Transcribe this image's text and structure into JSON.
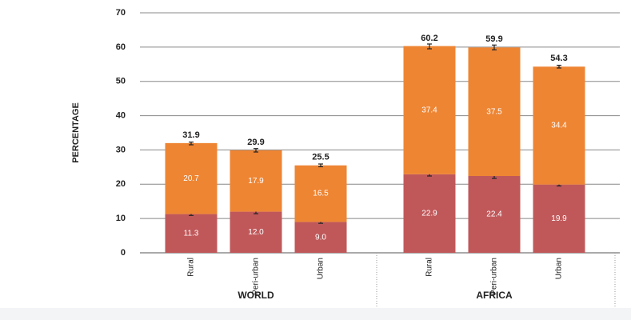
{
  "chart_data": {
    "type": "stacked-bar",
    "y_label": "PERCENTAGE",
    "categories": [
      "Rural",
      "Peri-urban",
      "Urban",
      "Rural",
      "Peri-urban",
      "Urban"
    ],
    "groups": [
      "WORLD",
      "AFRICA"
    ],
    "series": [
      {
        "color": "#c0585a",
        "values": [
          11.3,
          12.0,
          9.0,
          22.9,
          22.4,
          19.9
        ],
        "value_labels": [
          "11.3",
          "12.0",
          "9.0",
          "22.9",
          "22.4",
          "19.9"
        ],
        "error": [
          0.4,
          0.6,
          0.4,
          0.5,
          0.7,
          0.4
        ]
      },
      {
        "color": "#ee8533",
        "values": [
          20.7,
          17.9,
          16.5,
          37.4,
          37.5,
          34.4
        ]
      }
    ],
    "totals": {
      "values": [
        31.9,
        29.9,
        25.5,
        60.2,
        59.9,
        54.3
      ],
      "error": [
        0.4,
        0.5,
        0.4,
        0.7,
        0.7,
        0.4
      ]
    },
    "ylim": [
      0,
      70
    ],
    "yticks": [
      0,
      10,
      20,
      30,
      40,
      50,
      60,
      70
    ],
    "grid": true
  }
}
